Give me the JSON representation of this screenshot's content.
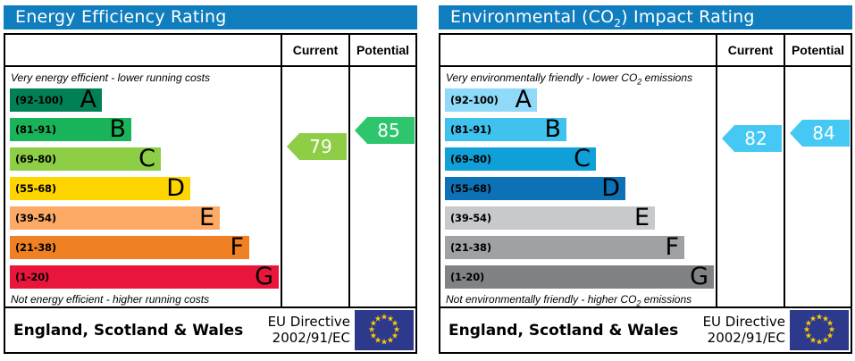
{
  "accent_header_blue": "#0f7dbe",
  "eu_flag": {
    "background": "#2d3a8c",
    "star_color": "#ffcc00",
    "star_count": 12
  },
  "panels": [
    {
      "title": {
        "pre": "Energy Efficiency Rating",
        "sub": "",
        "post": ""
      },
      "header": {
        "current": "Current",
        "potential": "Potential"
      },
      "captions": {
        "top_pre": "Very energy efficient - lower running costs",
        "top_sub": "",
        "top_post": "",
        "bottom_pre": "Not energy efficient - higher running costs",
        "bottom_sub": "",
        "bottom_post": ""
      },
      "bands": [
        {
          "range": "(92-100)",
          "letter": "A",
          "lo": 92,
          "hi": 100,
          "color": "#008054"
        },
        {
          "range": "(81-91)",
          "letter": "B",
          "lo": 81,
          "hi": 91,
          "color": "#19b459"
        },
        {
          "range": "(69-80)",
          "letter": "C",
          "lo": 69,
          "hi": 80,
          "color": "#8dce46"
        },
        {
          "range": "(55-68)",
          "letter": "D",
          "lo": 55,
          "hi": 68,
          "color": "#ffd500"
        },
        {
          "range": "(39-54)",
          "letter": "E",
          "lo": 39,
          "hi": 54,
          "color": "#fcaa65"
        },
        {
          "range": "(21-38)",
          "letter": "F",
          "lo": 21,
          "hi": 38,
          "color": "#ef8023"
        },
        {
          "range": "(1-20)",
          "letter": "G",
          "lo": 1,
          "hi": 20,
          "color": "#e9153b"
        }
      ],
      "current": {
        "value": 79,
        "color": "#8dce46"
      },
      "potential": {
        "value": 85,
        "color": "#2dc66c"
      },
      "footer": {
        "region": "England, Scotland & Wales",
        "directive_line1": "EU Directive",
        "directive_line2": "2002/91/EC"
      }
    },
    {
      "title": {
        "pre": "Environmental (CO",
        "sub": "2",
        "post": ") Impact Rating"
      },
      "header": {
        "current": "Current",
        "potential": "Potential"
      },
      "captions": {
        "top_pre": "Very environmentally friendly - lower CO",
        "top_sub": "2",
        "top_post": " emissions",
        "bottom_pre": "Not environmentally friendly - higher CO",
        "bottom_sub": "2",
        "bottom_post": " emissions"
      },
      "bands": [
        {
          "range": "(92-100)",
          "letter": "A",
          "lo": 92,
          "hi": 100,
          "color": "#8fd9f9"
        },
        {
          "range": "(81-91)",
          "letter": "B",
          "lo": 81,
          "hi": 91,
          "color": "#3fc2ed"
        },
        {
          "range": "(69-80)",
          "letter": "C",
          "lo": 69,
          "hi": 80,
          "color": "#0fa0d8"
        },
        {
          "range": "(55-68)",
          "letter": "D",
          "lo": 55,
          "hi": 68,
          "color": "#0c72b5"
        },
        {
          "range": "(39-54)",
          "letter": "E",
          "lo": 39,
          "hi": 54,
          "color": "#c8c9cb"
        },
        {
          "range": "(21-38)",
          "letter": "F",
          "lo": 21,
          "hi": 38,
          "color": "#9fa1a4"
        },
        {
          "range": "(1-20)",
          "letter": "G",
          "lo": 1,
          "hi": 20,
          "color": "#808285"
        }
      ],
      "current": {
        "value": 82,
        "color": "#45c8f3"
      },
      "potential": {
        "value": 84,
        "color": "#45c8f3"
      },
      "footer": {
        "region": "England, Scotland & Wales",
        "directive_line1": "EU Directive",
        "directive_line2": "2002/91/EC"
      }
    }
  ],
  "chart_data": [
    {
      "type": "bar",
      "title": "Energy Efficiency Rating",
      "categories": [
        "A (92-100)",
        "B (81-91)",
        "C (69-80)",
        "D (55-68)",
        "E (39-54)",
        "F (21-38)",
        "G (1-20)"
      ],
      "band_colors": [
        "#008054",
        "#19b459",
        "#8dce46",
        "#ffd500",
        "#fcaa65",
        "#ef8023",
        "#e9153b"
      ],
      "scale_range": [
        1,
        100
      ],
      "series": [
        {
          "name": "Current",
          "values": [
            79
          ],
          "band": "C"
        },
        {
          "name": "Potential",
          "values": [
            85
          ],
          "band": "B"
        }
      ],
      "annotations": {
        "top": "Very energy efficient - lower running costs",
        "bottom": "Not energy efficient - higher running costs",
        "footer": "England, Scotland & Wales",
        "directive": "EU Directive 2002/91/EC"
      }
    },
    {
      "type": "bar",
      "title": "Environmental (CO2) Impact Rating",
      "categories": [
        "A (92-100)",
        "B (81-91)",
        "C (69-80)",
        "D (55-68)",
        "E (39-54)",
        "F (21-38)",
        "G (1-20)"
      ],
      "band_colors": [
        "#8fd9f9",
        "#3fc2ed",
        "#0fa0d8",
        "#0c72b5",
        "#c8c9cb",
        "#9fa1a4",
        "#808285"
      ],
      "scale_range": [
        1,
        100
      ],
      "series": [
        {
          "name": "Current",
          "values": [
            82
          ],
          "band": "B"
        },
        {
          "name": "Potential",
          "values": [
            84
          ],
          "band": "B"
        }
      ],
      "annotations": {
        "top": "Very environmentally friendly - lower CO2 emissions",
        "bottom": "Not environmentally friendly - higher CO2 emissions",
        "footer": "England, Scotland & Wales",
        "directive": "EU Directive 2002/91/EC"
      }
    }
  ]
}
